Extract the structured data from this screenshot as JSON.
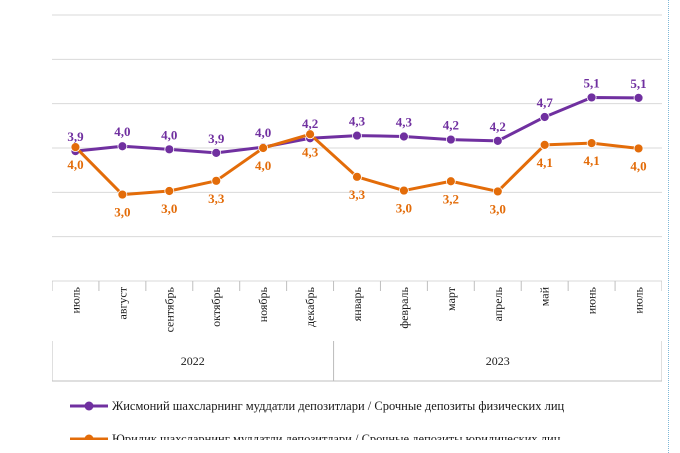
{
  "chart_data": {
    "type": "line",
    "categories": [
      "июль",
      "август",
      "сентябрь",
      "октябрь",
      "ноябрь",
      "декабрь",
      "январь",
      "февраль",
      "март",
      "апрель",
      "май",
      "июнь",
      "июль"
    ],
    "year_groups": [
      {
        "label": "2022",
        "start": 0,
        "end": 5
      },
      {
        "label": "2023",
        "start": 6,
        "end": 12
      }
    ],
    "ylim": [
      1,
      7
    ],
    "yticks": [
      1,
      2,
      3,
      4,
      5,
      6,
      7
    ],
    "grid": true,
    "legend_position": "bottom",
    "series": [
      {
        "name": "Жисмоний шахсларнинг  муддатли  депозитлари / Срочные депозиты физических  лиц",
        "color": "#7030a0",
        "values": [
          3.93,
          4.04,
          3.97,
          3.89,
          4.02,
          4.22,
          4.28,
          4.26,
          4.19,
          4.16,
          4.7,
          5.14,
          5.13
        ],
        "labels": [
          "3,9",
          "4,0",
          "4,0",
          "3,9",
          "4,0",
          "4,2",
          "4,3",
          "4,3",
          "4,2",
          "4,2",
          "4,7",
          "5,1",
          "5,1"
        ],
        "label_position": "above"
      },
      {
        "name": "Юридик  шахсларнинг  муддатли  депозитлари / Срочные депозиты юридических  лиц",
        "color": "#e36c09",
        "values": [
          4.02,
          2.95,
          3.03,
          3.26,
          4.0,
          4.31,
          3.35,
          3.04,
          3.25,
          3.02,
          4.07,
          4.11,
          3.99
        ],
        "labels": [
          "4,0",
          "3,0",
          "3,0",
          "3,3",
          "4,0",
          "4,3",
          "3,3",
          "3,0",
          "3,2",
          "3,0",
          "4,1",
          "4,1",
          "4,0"
        ],
        "label_position": "below"
      }
    ]
  },
  "colors": {
    "grid": "#d9d9d9",
    "axis": "#bfbfbf"
  }
}
